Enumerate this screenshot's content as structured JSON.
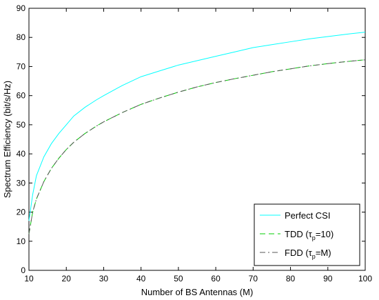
{
  "chart_data": {
    "type": "line",
    "xlabel": "Number of BS Antennas (M)",
    "ylabel": "Spectrum Efficiency (bit/s/Hz)",
    "xlim": [
      10,
      100
    ],
    "ylim": [
      0,
      90
    ],
    "xticks": [
      "10",
      "20",
      "30",
      "40",
      "50",
      "60",
      "70",
      "80",
      "90",
      "100"
    ],
    "yticks": [
      "0",
      "10",
      "20",
      "30",
      "40",
      "50",
      "60",
      "70",
      "80",
      "90"
    ],
    "grid": false,
    "legend_position": "bottom-right",
    "x": [
      10,
      11,
      12,
      14,
      16,
      18,
      20,
      22,
      25,
      28,
      30,
      35,
      40,
      45,
      50,
      55,
      60,
      65,
      70,
      75,
      80,
      85,
      90,
      95,
      100
    ],
    "series": [
      {
        "name": "Perfect CSI",
        "color": "#00ffff",
        "dash": "solid",
        "values": [
          17,
          26,
          32.5,
          39,
          43.5,
          47,
          50,
          53,
          56,
          58.5,
          60,
          63.5,
          66.5,
          68.5,
          70.5,
          72,
          73.5,
          75,
          76.5,
          77.5,
          78.5,
          79.5,
          80.3,
          81.1,
          81.8
        ]
      },
      {
        "name": "TDD (τp=10)",
        "name_parts": [
          "TDD (τ",
          "p",
          "=10)"
        ],
        "color": "#00cc00",
        "dash": "dashed",
        "values": [
          12.5,
          20,
          24.5,
          30.5,
          35,
          38.5,
          41.5,
          44,
          47,
          49.5,
          51,
          54.2,
          57,
          59.2,
          61.2,
          63,
          64.5,
          65.8,
          67,
          68.2,
          69.2,
          70.2,
          71,
          71.7,
          72.3
        ]
      },
      {
        "name": "FDD (τp=M)",
        "name_parts": [
          "FDD (τ",
          "p",
          "=M)"
        ],
        "color": "#555555",
        "dash": "dashdot",
        "values": [
          12.5,
          20,
          24.5,
          30.5,
          35,
          38.5,
          41.5,
          44,
          47,
          49.5,
          51,
          54.2,
          57,
          59.2,
          61.2,
          63,
          64.5,
          65.8,
          67,
          68.2,
          69.2,
          70.2,
          71,
          71.7,
          72.3
        ]
      }
    ]
  }
}
